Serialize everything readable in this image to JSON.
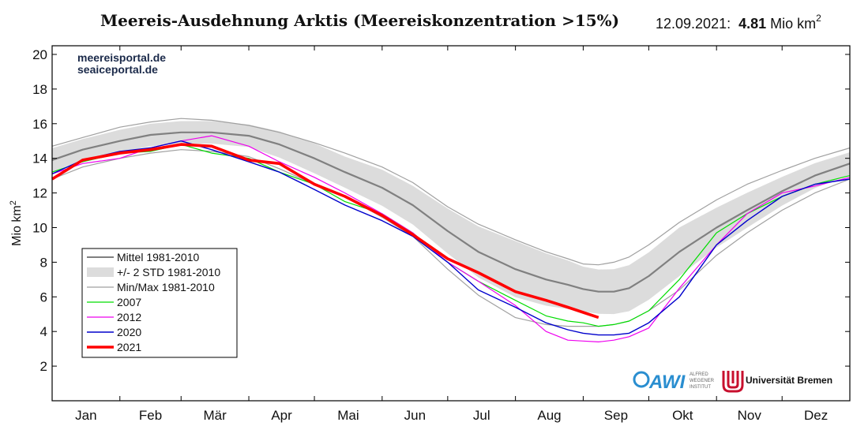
{
  "header": {
    "title": "Meereis-Ausdehnung Arktis (Meereiskonzentration >15%)",
    "date": "12.09.2021:",
    "current_value": "4.81",
    "unit": "Mio km",
    "unit_exp": "2"
  },
  "watermark": {
    "line1": "meereisportal.de",
    "line2": "seaiceportal.de"
  },
  "logos": {
    "awi": "AWI",
    "awi_sub": [
      "ALFRED",
      "WEGENER",
      "INSTITUT"
    ],
    "bremen": "Universität Bremen"
  },
  "colors": {
    "mean": "#808080",
    "std_band": "#dcdcdc",
    "minmax": "#a0a0a0",
    "y2007": "#00dd00",
    "y2012": "#ee00ee",
    "y2020": "#0000cc",
    "y2021": "#ff0000"
  },
  "chart_data": {
    "type": "line",
    "ylabel": "Mio km",
    "ylabel_exp": "2",
    "ylim": [
      0,
      20.5
    ],
    "yticks": [
      2,
      4,
      6,
      8,
      10,
      12,
      14,
      16,
      18,
      20
    ],
    "xlim": [
      1,
      366
    ],
    "months": [
      "Jan",
      "Feb",
      "Mär",
      "Apr",
      "Mai",
      "Jun",
      "Jul",
      "Aug",
      "Sep",
      "Okt",
      "Nov",
      "Dez"
    ],
    "month_starts": [
      1,
      32,
      60,
      91,
      121,
      152,
      182,
      213,
      244,
      274,
      305,
      335
    ],
    "legend_position": "lower-left",
    "legend": [
      "Mittel 1981-2010",
      "+/- 2 STD 1981-2010",
      "Min/Max 1981-2010",
      "2007",
      "2012",
      "2020",
      "2021"
    ],
    "x": [
      1,
      15,
      32,
      46,
      60,
      74,
      91,
      105,
      121,
      135,
      152,
      166,
      182,
      196,
      213,
      227,
      237,
      244,
      251,
      258,
      265,
      274,
      288,
      305,
      319,
      335,
      350,
      366
    ],
    "series": [
      {
        "name": "Mittel 1981-2010",
        "key": "mean",
        "values": [
          13.9,
          14.5,
          15.0,
          15.35,
          15.5,
          15.5,
          15.3,
          14.8,
          14.0,
          13.2,
          12.3,
          11.3,
          9.8,
          8.6,
          7.6,
          7.0,
          6.7,
          6.45,
          6.3,
          6.3,
          6.5,
          7.2,
          8.6,
          10.0,
          11.0,
          12.1,
          13.0,
          13.7
        ]
      },
      {
        "name": "Min 1981-2010",
        "key": "min",
        "values": [
          12.8,
          13.5,
          14.0,
          14.3,
          14.5,
          14.4,
          14.1,
          13.4,
          12.5,
          11.8,
          10.6,
          9.5,
          7.6,
          6.1,
          4.8,
          4.4,
          4.3,
          4.3,
          4.3,
          4.4,
          4.6,
          5.2,
          6.4,
          8.4,
          9.7,
          11.0,
          12.0,
          12.8
        ]
      },
      {
        "name": "Max 1981-2010",
        "key": "max",
        "values": [
          14.7,
          15.2,
          15.8,
          16.1,
          16.3,
          16.2,
          15.9,
          15.5,
          14.9,
          14.3,
          13.5,
          12.6,
          11.2,
          10.2,
          9.3,
          8.6,
          8.2,
          7.9,
          7.85,
          8.0,
          8.3,
          9.0,
          10.3,
          11.6,
          12.5,
          13.3,
          14.0,
          14.6
        ]
      },
      {
        "name": "2007",
        "key": "y2007",
        "values": [
          13.2,
          13.8,
          14.3,
          14.4,
          14.8,
          14.3,
          14.0,
          13.2,
          12.5,
          11.5,
          10.8,
          9.7,
          8.0,
          6.9,
          5.8,
          4.9,
          4.6,
          4.5,
          4.3,
          4.4,
          4.6,
          5.2,
          7.0,
          9.7,
          10.8,
          11.8,
          12.5,
          13.0
        ]
      },
      {
        "name": "2012",
        "key": "y2012",
        "values": [
          13.1,
          13.7,
          14.0,
          14.6,
          15.0,
          15.3,
          14.7,
          13.8,
          12.9,
          12.0,
          10.8,
          9.7,
          8.0,
          6.9,
          5.5,
          4.0,
          3.5,
          3.45,
          3.4,
          3.5,
          3.7,
          4.2,
          6.5,
          9.0,
          10.8,
          12.0,
          12.4,
          12.9
        ]
      },
      {
        "name": "2020",
        "key": "y2020",
        "values": [
          13.1,
          13.9,
          14.4,
          14.6,
          15.0,
          14.5,
          13.8,
          13.2,
          12.2,
          11.3,
          10.4,
          9.5,
          8.0,
          6.4,
          5.4,
          4.5,
          4.1,
          3.9,
          3.8,
          3.8,
          3.9,
          4.5,
          6.0,
          9.0,
          10.4,
          11.8,
          12.5,
          12.8
        ]
      },
      {
        "name": "2021",
        "key": "y2021",
        "values": [
          12.8,
          13.9,
          14.3,
          14.5,
          14.8,
          14.7,
          13.9,
          13.7,
          12.5,
          11.8,
          10.7,
          9.6,
          8.2,
          7.4,
          6.3,
          5.8,
          5.4,
          5.1,
          4.81,
          null,
          null,
          null,
          null,
          null,
          null,
          null,
          null,
          null
        ]
      }
    ]
  }
}
